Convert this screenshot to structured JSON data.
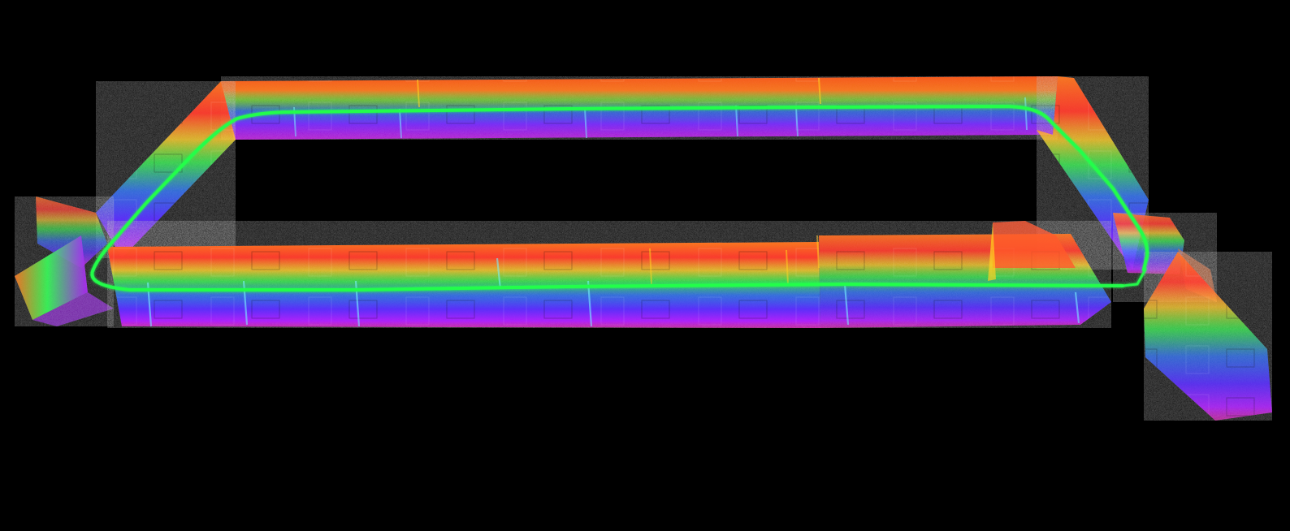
{
  "scene": {
    "description_visible_text": "",
    "background_color": "#000000",
    "colormap": [
      "#ff7a1a",
      "#ff3a2a",
      "#ffd21e",
      "#34ff5a",
      "#2c7bff",
      "#5c2cff",
      "#b21eff",
      "#ff00d6"
    ],
    "trajectory_color": "#24ff4a"
  }
}
